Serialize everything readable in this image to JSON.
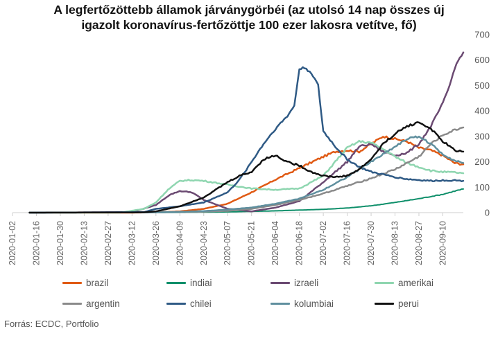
{
  "title": {
    "line1": "A legfertőzöttebb államok járványgörbéi (az utolsó 14 nap összes új",
    "line2": "igazolt koronavírus-fertőzöttje 100 ezer lakosra vetítve, fő)"
  },
  "source": "Forrás: ECDC, Portfolio",
  "chart_data": {
    "type": "line",
    "title": "A legfertőzöttebb államok járványgörbéi (az utolsó 14 nap összes új igazolt koronavírus-fertőzöttje 100 ezer lakosra vetítve, fő)",
    "x_ticks": [
      "2020-01-02",
      "2020-01-16",
      "2020-01-30",
      "2020-02-13",
      "2020-02-27",
      "2020-03-12",
      "2020-03-26",
      "2020-04-09",
      "2020-04-23",
      "2020-05-07",
      "2020-05-21",
      "2020-06-04",
      "2020-06-18",
      "2020-07-02",
      "2020-07-16",
      "2020-07-30",
      "2020-08-13",
      "2020-08-27",
      "2020-09-10"
    ],
    "y_ticks": [
      0,
      100,
      200,
      300,
      400,
      500,
      600,
      700
    ],
    "ylim": [
      0,
      700
    ],
    "xlim": [
      "2020-01-02",
      "2020-09-22"
    ],
    "y_axis_side": "right",
    "grid": false,
    "legend_position": "bottom",
    "series": [
      {
        "name": "brazil",
        "color": "#e05a14",
        "width": 2.5,
        "points": [
          [
            "2020-01-12",
            0
          ],
          [
            "2020-03-12",
            0
          ],
          [
            "2020-03-26",
            1
          ],
          [
            "2020-04-09",
            5
          ],
          [
            "2020-04-23",
            15
          ],
          [
            "2020-05-07",
            35
          ],
          [
            "2020-05-21",
            80
          ],
          [
            "2020-06-04",
            130
          ],
          [
            "2020-06-18",
            175
          ],
          [
            "2020-07-02",
            220
          ],
          [
            "2020-07-09",
            240
          ],
          [
            "2020-07-16",
            245
          ],
          [
            "2020-07-23",
            240
          ],
          [
            "2020-07-30",
            270
          ],
          [
            "2020-08-06",
            300
          ],
          [
            "2020-08-13",
            290
          ],
          [
            "2020-08-20",
            280
          ],
          [
            "2020-08-27",
            255
          ],
          [
            "2020-09-03",
            245
          ],
          [
            "2020-09-10",
            225
          ],
          [
            "2020-09-17",
            195
          ],
          [
            "2020-09-22",
            190
          ]
        ]
      },
      {
        "name": "indiai",
        "color": "#0e8f6a",
        "width": 2,
        "points": [
          [
            "2020-01-12",
            0
          ],
          [
            "2020-03-26",
            0
          ],
          [
            "2020-04-09",
            1
          ],
          [
            "2020-04-23",
            2
          ],
          [
            "2020-05-07",
            3
          ],
          [
            "2020-05-21",
            5
          ],
          [
            "2020-06-04",
            7
          ],
          [
            "2020-06-18",
            10
          ],
          [
            "2020-07-02",
            13
          ],
          [
            "2020-07-16",
            18
          ],
          [
            "2020-07-30",
            27
          ],
          [
            "2020-08-13",
            40
          ],
          [
            "2020-08-27",
            55
          ],
          [
            "2020-09-10",
            72
          ],
          [
            "2020-09-17",
            85
          ],
          [
            "2020-09-22",
            93
          ]
        ]
      },
      {
        "name": "izraeli",
        "color": "#6b4a72",
        "width": 2.5,
        "points": [
          [
            "2020-01-12",
            0
          ],
          [
            "2020-03-12",
            2
          ],
          [
            "2020-03-26",
            30
          ],
          [
            "2020-04-03",
            70
          ],
          [
            "2020-04-09",
            85
          ],
          [
            "2020-04-16",
            80
          ],
          [
            "2020-04-23",
            50
          ],
          [
            "2020-05-07",
            15
          ],
          [
            "2020-05-21",
            5
          ],
          [
            "2020-06-04",
            20
          ],
          [
            "2020-06-18",
            45
          ],
          [
            "2020-07-02",
            120
          ],
          [
            "2020-07-16",
            200
          ],
          [
            "2020-07-23",
            260
          ],
          [
            "2020-07-30",
            270
          ],
          [
            "2020-08-06",
            240
          ],
          [
            "2020-08-13",
            225
          ],
          [
            "2020-08-20",
            235
          ],
          [
            "2020-08-27",
            270
          ],
          [
            "2020-09-03",
            340
          ],
          [
            "2020-09-10",
            430
          ],
          [
            "2020-09-14",
            500
          ],
          [
            "2020-09-17",
            570
          ],
          [
            "2020-09-20",
            610
          ],
          [
            "2020-09-22",
            630
          ]
        ]
      },
      {
        "name": "amerikai",
        "color": "#8fd6b0",
        "width": 2.5,
        "points": [
          [
            "2020-01-12",
            0
          ],
          [
            "2020-03-05",
            0
          ],
          [
            "2020-03-19",
            15
          ],
          [
            "2020-03-26",
            40
          ],
          [
            "2020-04-02",
            90
          ],
          [
            "2020-04-09",
            125
          ],
          [
            "2020-04-16",
            128
          ],
          [
            "2020-04-23",
            125
          ],
          [
            "2020-05-07",
            110
          ],
          [
            "2020-05-21",
            95
          ],
          [
            "2020-06-04",
            90
          ],
          [
            "2020-06-18",
            95
          ],
          [
            "2020-07-02",
            145
          ],
          [
            "2020-07-09",
            200
          ],
          [
            "2020-07-16",
            255
          ],
          [
            "2020-07-23",
            280
          ],
          [
            "2020-07-30",
            275
          ],
          [
            "2020-08-06",
            250
          ],
          [
            "2020-08-13",
            220
          ],
          [
            "2020-08-20",
            195
          ],
          [
            "2020-08-27",
            180
          ],
          [
            "2020-09-03",
            165
          ],
          [
            "2020-09-10",
            160
          ],
          [
            "2020-09-17",
            158
          ],
          [
            "2020-09-22",
            155
          ]
        ]
      },
      {
        "name": "argentin",
        "color": "#8a8a8a",
        "width": 2.5,
        "points": [
          [
            "2020-01-12",
            0
          ],
          [
            "2020-03-26",
            1
          ],
          [
            "2020-04-09",
            2
          ],
          [
            "2020-04-23",
            4
          ],
          [
            "2020-05-07",
            7
          ],
          [
            "2020-05-21",
            15
          ],
          [
            "2020-06-04",
            30
          ],
          [
            "2020-06-18",
            50
          ],
          [
            "2020-07-02",
            75
          ],
          [
            "2020-07-16",
            105
          ],
          [
            "2020-07-30",
            135
          ],
          [
            "2020-08-13",
            170
          ],
          [
            "2020-08-27",
            220
          ],
          [
            "2020-09-03",
            270
          ],
          [
            "2020-09-10",
            305
          ],
          [
            "2020-09-17",
            325
          ],
          [
            "2020-09-22",
            335
          ]
        ]
      },
      {
        "name": "chilei",
        "color": "#2f5a85",
        "width": 2.5,
        "points": [
          [
            "2020-01-12",
            0
          ],
          [
            "2020-03-19",
            2
          ],
          [
            "2020-03-26",
            15
          ],
          [
            "2020-04-09",
            25
          ],
          [
            "2020-04-23",
            40
          ],
          [
            "2020-05-07",
            80
          ],
          [
            "2020-05-14",
            130
          ],
          [
            "2020-05-21",
            200
          ],
          [
            "2020-05-28",
            270
          ],
          [
            "2020-06-04",
            330
          ],
          [
            "2020-06-11",
            380
          ],
          [
            "2020-06-15",
            420
          ],
          [
            "2020-06-18",
            565
          ],
          [
            "2020-06-21",
            570
          ],
          [
            "2020-06-25",
            550
          ],
          [
            "2020-06-29",
            500
          ],
          [
            "2020-07-02",
            320
          ],
          [
            "2020-07-09",
            260
          ],
          [
            "2020-07-16",
            210
          ],
          [
            "2020-07-23",
            180
          ],
          [
            "2020-07-30",
            160
          ],
          [
            "2020-08-06",
            150
          ],
          [
            "2020-08-13",
            140
          ],
          [
            "2020-08-20",
            132
          ],
          [
            "2020-08-27",
            128
          ],
          [
            "2020-09-03",
            125
          ],
          [
            "2020-09-10",
            127
          ],
          [
            "2020-09-17",
            127
          ],
          [
            "2020-09-22",
            125
          ]
        ]
      },
      {
        "name": "kolumbiai",
        "color": "#5f8f9e",
        "width": 2.5,
        "points": [
          [
            "2020-01-12",
            0
          ],
          [
            "2020-03-26",
            1
          ],
          [
            "2020-04-09",
            3
          ],
          [
            "2020-04-23",
            6
          ],
          [
            "2020-05-07",
            12
          ],
          [
            "2020-05-21",
            20
          ],
          [
            "2020-06-04",
            35
          ],
          [
            "2020-06-18",
            55
          ],
          [
            "2020-07-02",
            90
          ],
          [
            "2020-07-16",
            140
          ],
          [
            "2020-07-30",
            200
          ],
          [
            "2020-08-06",
            230
          ],
          [
            "2020-08-13",
            260
          ],
          [
            "2020-08-20",
            290
          ],
          [
            "2020-08-27",
            300
          ],
          [
            "2020-09-03",
            270
          ],
          [
            "2020-09-10",
            230
          ],
          [
            "2020-09-17",
            205
          ],
          [
            "2020-09-22",
            195
          ]
        ]
      },
      {
        "name": "perui",
        "color": "#111111",
        "width": 2.5,
        "points": [
          [
            "2020-01-12",
            0
          ],
          [
            "2020-03-19",
            1
          ],
          [
            "2020-03-26",
            5
          ],
          [
            "2020-04-09",
            25
          ],
          [
            "2020-04-23",
            60
          ],
          [
            "2020-05-07",
            120
          ],
          [
            "2020-05-14",
            145
          ],
          [
            "2020-05-21",
            160
          ],
          [
            "2020-05-28",
            210
          ],
          [
            "2020-06-04",
            225
          ],
          [
            "2020-06-11",
            200
          ],
          [
            "2020-06-18",
            185
          ],
          [
            "2020-06-25",
            160
          ],
          [
            "2020-07-02",
            145
          ],
          [
            "2020-07-09",
            140
          ],
          [
            "2020-07-16",
            145
          ],
          [
            "2020-07-23",
            170
          ],
          [
            "2020-07-30",
            210
          ],
          [
            "2020-08-06",
            270
          ],
          [
            "2020-08-13",
            310
          ],
          [
            "2020-08-20",
            340
          ],
          [
            "2020-08-27",
            355
          ],
          [
            "2020-09-03",
            330
          ],
          [
            "2020-09-10",
            280
          ],
          [
            "2020-09-17",
            245
          ],
          [
            "2020-09-22",
            240
          ]
        ]
      }
    ]
  }
}
